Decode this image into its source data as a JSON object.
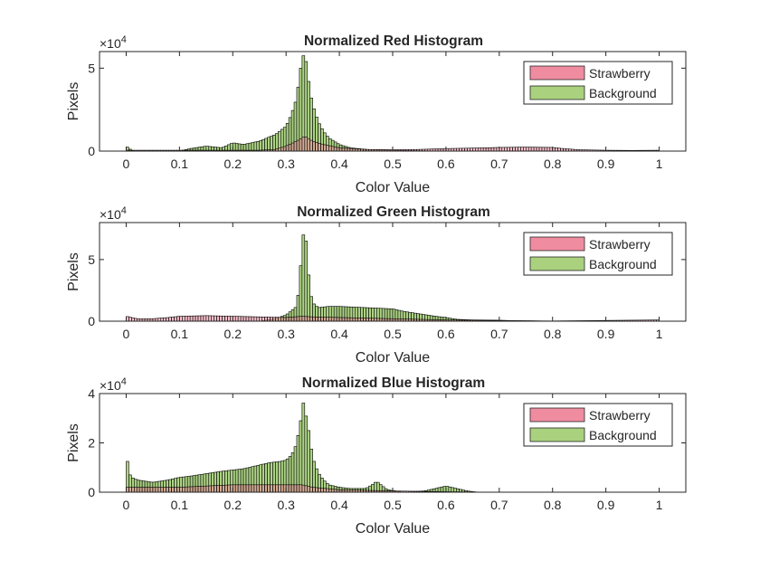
{
  "chart_data": [
    {
      "type": "histogram",
      "title": "Normalized Red Histogram",
      "xlabel": "Color Value",
      "ylabel": "Pixels",
      "exponent_label": "×10",
      "exponent": "4",
      "ylim": [
        0,
        6
      ],
      "yticks": [
        0,
        5
      ],
      "ytick_labels": [
        "0",
        "5"
      ],
      "xlim": [
        -0.05,
        1.05
      ],
      "xticks": [
        0,
        0.1,
        0.2,
        0.3,
        0.4,
        0.5,
        0.6,
        0.7,
        0.8,
        0.9,
        1
      ],
      "xtick_labels": [
        "0",
        "0.1",
        "0.2",
        "0.3",
        "0.4",
        "0.5",
        "0.6",
        "0.7",
        "0.8",
        "0.9",
        "1"
      ],
      "y_units": "x10^4 pixels",
      "legend_position": "top-right",
      "series": [
        {
          "name": "Strawberry",
          "color": "#f08ca0",
          "points": [
            [
              0.0,
              0.05
            ],
            [
              0.25,
              0.05
            ],
            [
              0.28,
              0.1
            ],
            [
              0.3,
              0.3
            ],
            [
              0.32,
              0.6
            ],
            [
              0.335,
              0.9
            ],
            [
              0.35,
              0.6
            ],
            [
              0.37,
              0.4
            ],
            [
              0.4,
              0.2
            ],
            [
              0.45,
              0.1
            ],
            [
              0.5,
              0.08
            ],
            [
              0.55,
              0.1
            ],
            [
              0.6,
              0.15
            ],
            [
              0.65,
              0.18
            ],
            [
              0.7,
              0.22
            ],
            [
              0.75,
              0.24
            ],
            [
              0.8,
              0.22
            ],
            [
              0.82,
              0.15
            ],
            [
              0.85,
              0.08
            ],
            [
              0.9,
              0.05
            ],
            [
              0.95,
              0.04
            ],
            [
              1.0,
              0.05
            ]
          ]
        },
        {
          "name": "Background",
          "color": "#a9d17e",
          "points": [
            [
              0.0,
              0.3
            ],
            [
              0.01,
              0.05
            ],
            [
              0.02,
              0.0
            ],
            [
              0.1,
              0.0
            ],
            [
              0.12,
              0.15
            ],
            [
              0.15,
              0.3
            ],
            [
              0.18,
              0.2
            ],
            [
              0.2,
              0.5
            ],
            [
              0.22,
              0.4
            ],
            [
              0.25,
              0.6
            ],
            [
              0.28,
              1.0
            ],
            [
              0.3,
              1.5
            ],
            [
              0.31,
              2.2
            ],
            [
              0.32,
              3.2
            ],
            [
              0.325,
              4.5
            ],
            [
              0.33,
              5.5
            ],
            [
              0.335,
              6.0
            ],
            [
              0.34,
              4.8
            ],
            [
              0.345,
              3.6
            ],
            [
              0.35,
              2.8
            ],
            [
              0.36,
              1.8
            ],
            [
              0.37,
              1.2
            ],
            [
              0.38,
              0.8
            ],
            [
              0.4,
              0.4
            ],
            [
              0.42,
              0.2
            ],
            [
              0.45,
              0.1
            ],
            [
              0.5,
              0.05
            ],
            [
              0.55,
              0.02
            ],
            [
              0.6,
              0.0
            ],
            [
              1.0,
              0.0
            ]
          ]
        }
      ]
    },
    {
      "type": "histogram",
      "title": "Normalized Green Histogram",
      "xlabel": "Color Value",
      "ylabel": "Pixels",
      "exponent_label": "×10",
      "exponent": "4",
      "ylim": [
        0,
        8
      ],
      "yticks": [
        0,
        5
      ],
      "ytick_labels": [
        "0",
        "5"
      ],
      "xlim": [
        -0.05,
        1.05
      ],
      "xticks": [
        0,
        0.1,
        0.2,
        0.3,
        0.4,
        0.5,
        0.6,
        0.7,
        0.8,
        0.9,
        1
      ],
      "xtick_labels": [
        "0",
        "0.1",
        "0.2",
        "0.3",
        "0.4",
        "0.5",
        "0.6",
        "0.7",
        "0.8",
        "0.9",
        "1"
      ],
      "y_units": "x10^4 pixels",
      "legend_position": "top-right",
      "series": [
        {
          "name": "Strawberry",
          "color": "#f08ca0",
          "points": [
            [
              0.0,
              0.4
            ],
            [
              0.02,
              0.2
            ],
            [
              0.05,
              0.2
            ],
            [
              0.08,
              0.3
            ],
            [
              0.1,
              0.4
            ],
            [
              0.15,
              0.45
            ],
            [
              0.2,
              0.4
            ],
            [
              0.25,
              0.35
            ],
            [
              0.3,
              0.3
            ],
            [
              0.33,
              0.4
            ],
            [
              0.35,
              0.35
            ],
            [
              0.4,
              0.3
            ],
            [
              0.5,
              0.2
            ],
            [
              0.6,
              0.1
            ],
            [
              0.7,
              0.05
            ],
            [
              0.8,
              0.02
            ],
            [
              1.0,
              0.1
            ]
          ]
        },
        {
          "name": "Background",
          "color": "#a9d17e",
          "points": [
            [
              0.0,
              0.0
            ],
            [
              0.25,
              0.0
            ],
            [
              0.28,
              0.2
            ],
            [
              0.3,
              0.5
            ],
            [
              0.32,
              1.2
            ],
            [
              0.325,
              3.0
            ],
            [
              0.33,
              6.0
            ],
            [
              0.335,
              8.0
            ],
            [
              0.34,
              5.0
            ],
            [
              0.345,
              2.5
            ],
            [
              0.35,
              1.5
            ],
            [
              0.36,
              1.1
            ],
            [
              0.38,
              1.2
            ],
            [
              0.4,
              1.2
            ],
            [
              0.45,
              1.1
            ],
            [
              0.5,
              1.0
            ],
            [
              0.52,
              0.8
            ],
            [
              0.55,
              0.6
            ],
            [
              0.58,
              0.4
            ],
            [
              0.6,
              0.3
            ],
            [
              0.62,
              0.15
            ],
            [
              0.65,
              0.1
            ],
            [
              0.7,
              0.08
            ],
            [
              0.72,
              0.05
            ],
            [
              0.75,
              0.03
            ],
            [
              0.8,
              0.0
            ],
            [
              1.0,
              0.0
            ]
          ]
        }
      ]
    },
    {
      "type": "histogram",
      "title": "Normalized Blue Histogram",
      "xlabel": "Color Value",
      "ylabel": "Pixels",
      "exponent_label": "×10",
      "exponent": "4",
      "ylim": [
        0,
        4
      ],
      "yticks": [
        0,
        2,
        4
      ],
      "ytick_labels": [
        "0",
        "2",
        "4"
      ],
      "xlim": [
        -0.05,
        1.05
      ],
      "xticks": [
        0,
        0.1,
        0.2,
        0.3,
        0.4,
        0.5,
        0.6,
        0.7,
        0.8,
        0.9,
        1
      ],
      "xtick_labels": [
        "0",
        "0.1",
        "0.2",
        "0.3",
        "0.4",
        "0.5",
        "0.6",
        "0.7",
        "0.8",
        "0.9",
        "1"
      ],
      "y_units": "x10^4 pixels",
      "legend_position": "top-right",
      "series": [
        {
          "name": "Strawberry",
          "color": "#f08ca0",
          "points": [
            [
              0.0,
              0.2
            ],
            [
              0.05,
              0.2
            ],
            [
              0.1,
              0.2
            ],
            [
              0.15,
              0.25
            ],
            [
              0.2,
              0.3
            ],
            [
              0.25,
              0.3
            ],
            [
              0.3,
              0.3
            ],
            [
              0.33,
              0.3
            ],
            [
              0.35,
              0.2
            ],
            [
              0.4,
              0.1
            ],
            [
              0.5,
              0.05
            ],
            [
              0.6,
              0.02
            ],
            [
              0.7,
              0.0
            ],
            [
              1.0,
              0.0
            ]
          ]
        },
        {
          "name": "Background",
          "color": "#a9d17e",
          "points": [
            [
              0.0,
              1.7
            ],
            [
              0.005,
              0.8
            ],
            [
              0.01,
              0.6
            ],
            [
              0.02,
              0.5
            ],
            [
              0.05,
              0.4
            ],
            [
              0.08,
              0.5
            ],
            [
              0.1,
              0.6
            ],
            [
              0.12,
              0.65
            ],
            [
              0.15,
              0.75
            ],
            [
              0.18,
              0.85
            ],
            [
              0.2,
              0.9
            ],
            [
              0.22,
              0.95
            ],
            [
              0.25,
              1.1
            ],
            [
              0.27,
              1.2
            ],
            [
              0.29,
              1.25
            ],
            [
              0.3,
              1.3
            ],
            [
              0.31,
              1.5
            ],
            [
              0.315,
              1.7
            ],
            [
              0.32,
              2.0
            ],
            [
              0.325,
              2.6
            ],
            [
              0.33,
              3.2
            ],
            [
              0.333,
              3.7
            ],
            [
              0.336,
              3.2
            ],
            [
              0.34,
              2.9
            ],
            [
              0.345,
              2.1
            ],
            [
              0.35,
              1.4
            ],
            [
              0.36,
              0.8
            ],
            [
              0.37,
              0.5
            ],
            [
              0.38,
              0.3
            ],
            [
              0.4,
              0.2
            ],
            [
              0.42,
              0.15
            ],
            [
              0.45,
              0.15
            ],
            [
              0.465,
              0.35
            ],
            [
              0.47,
              0.45
            ],
            [
              0.475,
              0.35
            ],
            [
              0.49,
              0.1
            ],
            [
              0.52,
              0.0
            ],
            [
              0.56,
              0.05
            ],
            [
              0.58,
              0.15
            ],
            [
              0.6,
              0.25
            ],
            [
              0.62,
              0.15
            ],
            [
              0.64,
              0.05
            ],
            [
              0.66,
              0.0
            ],
            [
              1.0,
              0.0
            ]
          ]
        }
      ]
    }
  ]
}
